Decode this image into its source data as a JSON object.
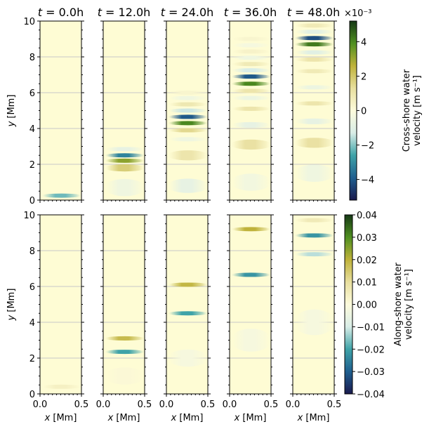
{
  "chart_data": {
    "type": "heatmap",
    "figure_description_free": true,
    "colormap": [
      "#1a1a4e",
      "#1f5f8f",
      "#3fa3a8",
      "#d9ede7",
      "#fdfbdc",
      "#e8df9e",
      "#bfb23a",
      "#4f8f20",
      "#163a16"
    ],
    "panel_bg": "#fefcd4",
    "grid_color": "#c8c8c8",
    "x_axis": {
      "label": "x [Mm]",
      "range": [
        0.0,
        0.5
      ],
      "ticks": [
        "0.0",
        "0.5"
      ]
    },
    "y_axis": {
      "label": "y [Mm]",
      "range": [
        0,
        10
      ],
      "ticks": [
        "0",
        "2",
        "4",
        "6",
        "8",
        "10"
      ]
    },
    "titles": [
      "t = 0.0h",
      "t = 12.0h",
      "t = 24.0h",
      "t = 36.0h",
      "t = 48.0h"
    ],
    "rows": [
      {
        "colorbar": {
          "label_line1": "Cross-shore water",
          "label_line2": "velocity [m s⁻¹]",
          "multiplier": "×10⁻³",
          "range": [
            -5.2,
            5.2
          ],
          "ticks": [
            "−4",
            "−2",
            "0",
            "2",
            "4"
          ],
          "tick_values": [
            -4,
            -2,
            0,
            2,
            4
          ]
        },
        "panels": [
          {
            "bands": [
              {
                "y": 0.25,
                "v": -2.2,
                "w": 0.11
              }
            ]
          },
          {
            "bands": [
              {
                "y": 0.7,
                "v": -0.5,
                "w": 0.6
              },
              {
                "y": 1.8,
                "v": 1.8,
                "w": 0.25
              },
              {
                "y": 2.2,
                "v": 3.2,
                "w": 0.09
              },
              {
                "y": 2.5,
                "v": -3.2,
                "w": 0.09
              },
              {
                "y": 2.85,
                "v": -0.8,
                "w": 0.1
              }
            ]
          },
          {
            "bands": [
              {
                "y": 0.8,
                "v": -0.8,
                "w": 0.5
              },
              {
                "y": 2.5,
                "v": 1.0,
                "w": 0.35
              },
              {
                "y": 3.4,
                "v": -0.5,
                "w": 0.15
              },
              {
                "y": 3.9,
                "v": 1.5,
                "w": 0.1
              },
              {
                "y": 4.3,
                "v": 4.0,
                "w": 0.09
              },
              {
                "y": 4.65,
                "v": -4.0,
                "w": 0.09
              },
              {
                "y": 5.0,
                "v": -1.4,
                "w": 0.09
              },
              {
                "y": 5.35,
                "v": 0.9,
                "w": 0.08
              },
              {
                "y": 5.7,
                "v": -0.5,
                "w": 0.08
              },
              {
                "y": 6.0,
                "v": 0.3,
                "w": 0.08
              }
            ]
          },
          {
            "bands": [
              {
                "y": 1.0,
                "v": -0.4,
                "w": 0.6
              },
              {
                "y": 3.1,
                "v": 1.2,
                "w": 0.35
              },
              {
                "y": 4.2,
                "v": -0.8,
                "w": 0.2
              },
              {
                "y": 5.1,
                "v": 1.0,
                "w": 0.15
              },
              {
                "y": 5.7,
                "v": -0.6,
                "w": 0.1
              },
              {
                "y": 6.1,
                "v": 1.0,
                "w": 0.08
              },
              {
                "y": 6.5,
                "v": 4.0,
                "w": 0.09
              },
              {
                "y": 6.9,
                "v": -4.0,
                "w": 0.09
              },
              {
                "y": 7.25,
                "v": -1.3,
                "w": 0.08
              },
              {
                "y": 7.6,
                "v": 0.8,
                "w": 0.08
              },
              {
                "y": 7.95,
                "v": -0.5,
                "w": 0.08
              },
              {
                "y": 8.3,
                "v": 0.4,
                "w": 0.08
              },
              {
                "y": 8.65,
                "v": -0.3,
                "w": 0.08
              },
              {
                "y": 9.0,
                "v": 0.3,
                "w": 0.08
              }
            ]
          },
          {
            "bands": [
              {
                "y": 1.5,
                "v": -0.5,
                "w": 0.6
              },
              {
                "y": 3.2,
                "v": 1.2,
                "w": 0.35
              },
              {
                "y": 4.4,
                "v": -0.8,
                "w": 0.2
              },
              {
                "y": 5.4,
                "v": 1.0,
                "w": 0.15
              },
              {
                "y": 6.3,
                "v": -0.6,
                "w": 0.12
              },
              {
                "y": 7.2,
                "v": 0.8,
                "w": 0.1
              },
              {
                "y": 7.85,
                "v": 1.0,
                "w": 0.08
              },
              {
                "y": 8.25,
                "v": -1.0,
                "w": 0.08
              },
              {
                "y": 8.7,
                "v": 4.2,
                "w": 0.09
              },
              {
                "y": 9.05,
                "v": -4.2,
                "w": 0.09
              },
              {
                "y": 9.4,
                "v": -1.0,
                "w": 0.07
              },
              {
                "y": 9.75,
                "v": 0.8,
                "w": 0.07
              }
            ]
          }
        ]
      },
      {
        "colorbar": {
          "label_line1": "Along-shore water",
          "label_line2": "velocity [m s⁻¹]",
          "multiplier": "",
          "range": [
            -0.04,
            0.04
          ],
          "ticks": [
            "−0.04",
            "−0.03",
            "−0.02",
            "−0.01",
            "0.00",
            "0.01",
            "0.02",
            "0.03",
            "0.04"
          ],
          "tick_values": [
            -0.04,
            -0.03,
            -0.02,
            -0.01,
            0.0,
            0.01,
            0.02,
            0.03,
            0.04
          ]
        },
        "panels": [
          {
            "bands": [
              {
                "y": 0.4,
                "v": 0.004,
                "w": 0.07
              }
            ]
          },
          {
            "bands": [
              {
                "y": 1.0,
                "v": 0.001,
                "w": 0.6
              },
              {
                "y": 2.35,
                "v": -0.02,
                "w": 0.1
              },
              {
                "y": 3.1,
                "v": 0.018,
                "w": 0.15
              }
            ]
          },
          {
            "bands": [
              {
                "y": 2.0,
                "v": -0.002,
                "w": 0.6
              },
              {
                "y": 4.5,
                "v": -0.02,
                "w": 0.1
              },
              {
                "y": 6.1,
                "v": 0.019,
                "w": 0.13
              }
            ]
          },
          {
            "bands": [
              {
                "y": 3.0,
                "v": -0.002,
                "w": 0.8
              },
              {
                "y": 6.65,
                "v": -0.022,
                "w": 0.1
              },
              {
                "y": 9.2,
                "v": 0.02,
                "w": 0.13
              }
            ]
          },
          {
            "bands": [
              {
                "y": 4.0,
                "v": -0.002,
                "w": 0.9
              },
              {
                "y": 7.8,
                "v": -0.012,
                "w": 0.12
              },
              {
                "y": 8.85,
                "v": -0.022,
                "w": 0.1
              },
              {
                "y": 9.7,
                "v": 0.006,
                "w": 0.1
              }
            ]
          }
        ]
      }
    ]
  }
}
